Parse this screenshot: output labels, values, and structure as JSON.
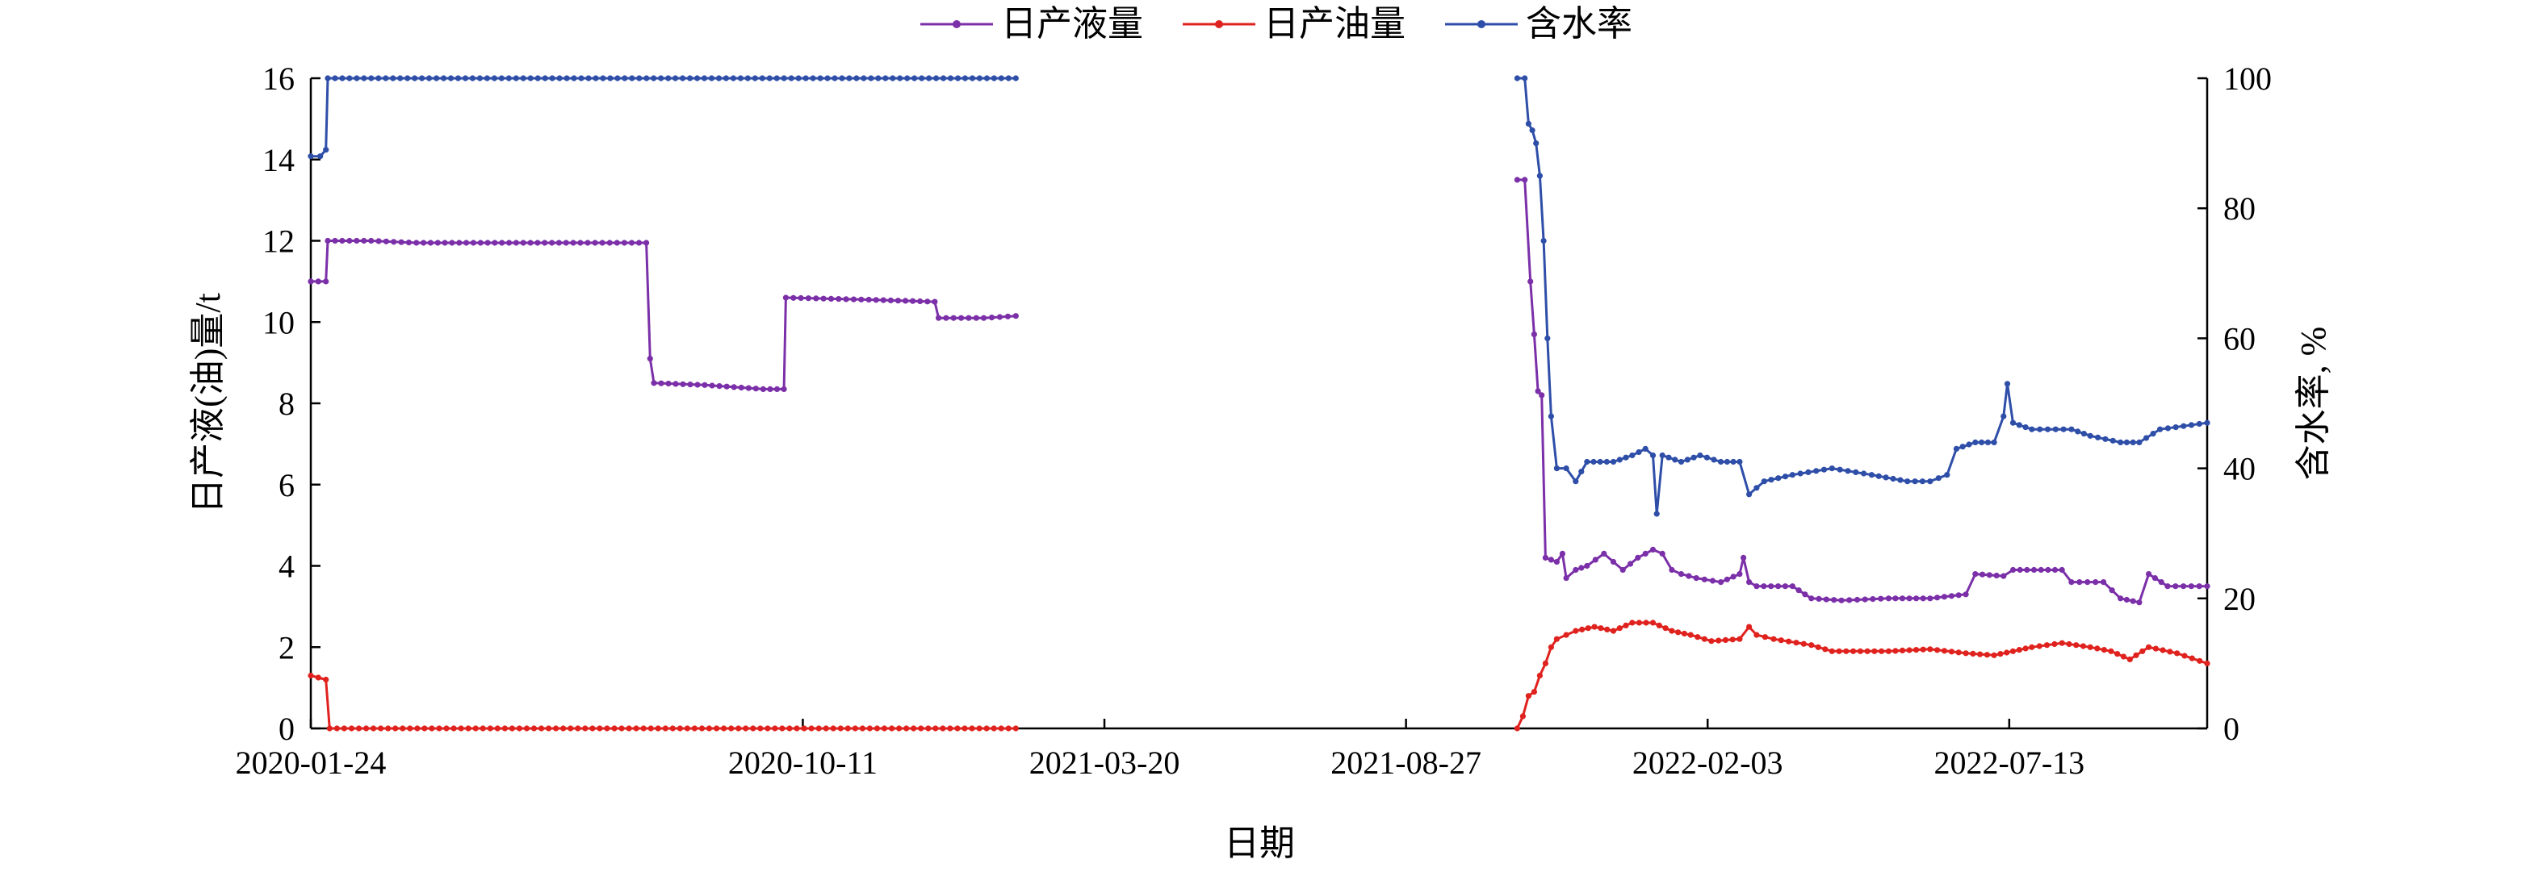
{
  "chart_data": {
    "type": "line",
    "xlabel": "日期",
    "ylabel_left": "日产液(油)量/t",
    "ylabel_right": "含水率, %",
    "x_ticks": [
      "2020-01-24",
      "2020-10-11",
      "2021-03-20",
      "2021-08-27",
      "2022-02-03",
      "2022-07-13"
    ],
    "xlim": [
      "2020-01-24",
      "2022-10-26"
    ],
    "ylim_left": [
      0,
      16
    ],
    "ylim_right": [
      0,
      100
    ],
    "yticks_left": [
      "0",
      "2",
      "4",
      "6",
      "8",
      "10",
      "12",
      "14",
      "16"
    ],
    "yticks_right": [
      "0",
      "20",
      "40",
      "60",
      "80",
      "100"
    ],
    "grid": false,
    "legend_position": "top-center",
    "series": [
      {
        "name": "日产液量",
        "axis": "left",
        "color": "#7B2FA8",
        "segments": [
          [
            [
              "2020-01-24",
              11.0
            ],
            [
              "2020-02-01",
              11.0
            ],
            [
              "2020-02-02",
              12.0
            ],
            [
              "2020-02-25",
              12.0
            ],
            [
              "2020-03-20",
              11.95
            ],
            [
              "2020-06-15",
              11.95
            ],
            [
              "2020-07-20",
              11.95
            ],
            [
              "2020-07-22",
              9.1
            ],
            [
              "2020-07-24",
              8.5
            ],
            [
              "2020-08-20",
              8.45
            ],
            [
              "2020-09-20",
              8.35
            ],
            [
              "2020-10-01",
              8.35
            ],
            [
              "2020-10-02",
              10.6
            ],
            [
              "2020-11-15",
              10.55
            ],
            [
              "2020-12-20",
              10.5
            ],
            [
              "2020-12-22",
              10.1
            ],
            [
              "2021-01-15",
              10.1
            ],
            [
              "2021-02-01",
              10.15
            ]
          ],
          [
            [
              "2021-10-25",
              13.5
            ],
            [
              "2021-10-29",
              13.5
            ],
            [
              "2021-11-01",
              11.0
            ],
            [
              "2021-11-03",
              9.7
            ],
            [
              "2021-11-05",
              8.3
            ],
            [
              "2021-11-07",
              8.2
            ],
            [
              "2021-11-09",
              4.2
            ],
            [
              "2021-11-15",
              4.1
            ],
            [
              "2021-11-18",
              4.3
            ],
            [
              "2021-11-20",
              3.7
            ],
            [
              "2021-11-25",
              3.9
            ],
            [
              "2021-12-01",
              4.0
            ],
            [
              "2021-12-10",
              4.3
            ],
            [
              "2021-12-15",
              4.1
            ],
            [
              "2021-12-20",
              3.9
            ],
            [
              "2021-12-28",
              4.2
            ],
            [
              "2022-01-05",
              4.4
            ],
            [
              "2022-01-10",
              4.3
            ],
            [
              "2022-01-15",
              3.9
            ],
            [
              "2022-01-20",
              3.8
            ],
            [
              "2022-01-28",
              3.7
            ],
            [
              "2022-02-10",
              3.6
            ],
            [
              "2022-02-20",
              3.8
            ],
            [
              "2022-02-22",
              4.2
            ],
            [
              "2022-02-25",
              3.6
            ],
            [
              "2022-03-01",
              3.5
            ],
            [
              "2022-03-20",
              3.5
            ],
            [
              "2022-03-30",
              3.2
            ],
            [
              "2022-04-15",
              3.15
            ],
            [
              "2022-05-10",
              3.2
            ],
            [
              "2022-06-01",
              3.2
            ],
            [
              "2022-06-20",
              3.3
            ],
            [
              "2022-06-25",
              3.8
            ],
            [
              "2022-07-10",
              3.75
            ],
            [
              "2022-07-15",
              3.9
            ],
            [
              "2022-08-10",
              3.9
            ],
            [
              "2022-08-15",
              3.6
            ],
            [
              "2022-09-01",
              3.6
            ],
            [
              "2022-09-10",
              3.2
            ],
            [
              "2022-09-20",
              3.1
            ],
            [
              "2022-09-25",
              3.8
            ],
            [
              "2022-10-05",
              3.5
            ],
            [
              "2022-10-26",
              3.5
            ]
          ]
        ]
      },
      {
        "name": "日产油量",
        "axis": "left",
        "color": "#E0221E",
        "segments": [
          [
            [
              "2020-01-24",
              1.3
            ],
            [
              "2020-01-28",
              1.25
            ],
            [
              "2020-02-01",
              1.2
            ],
            [
              "2020-02-03",
              0.0
            ],
            [
              "2021-02-01",
              0.0
            ]
          ],
          [
            [
              "2021-10-25",
              0.0
            ],
            [
              "2021-10-28",
              0.3
            ],
            [
              "2021-10-31",
              0.8
            ],
            [
              "2021-11-03",
              0.9
            ],
            [
              "2021-11-06",
              1.3
            ],
            [
              "2021-11-09",
              1.6
            ],
            [
              "2021-11-12",
              2.0
            ],
            [
              "2021-11-15",
              2.2
            ],
            [
              "2021-11-20",
              2.3
            ],
            [
              "2021-11-25",
              2.4
            ],
            [
              "2021-12-05",
              2.5
            ],
            [
              "2021-12-15",
              2.4
            ],
            [
              "2021-12-25",
              2.6
            ],
            [
              "2022-01-05",
              2.6
            ],
            [
              "2022-01-15",
              2.4
            ],
            [
              "2022-01-25",
              2.3
            ],
            [
              "2022-02-05",
              2.15
            ],
            [
              "2022-02-20",
              2.2
            ],
            [
              "2022-02-25",
              2.5
            ],
            [
              "2022-03-01",
              2.3
            ],
            [
              "2022-03-10",
              2.2
            ],
            [
              "2022-03-30",
              2.05
            ],
            [
              "2022-04-10",
              1.9
            ],
            [
              "2022-05-10",
              1.9
            ],
            [
              "2022-06-01",
              1.95
            ],
            [
              "2022-06-20",
              1.85
            ],
            [
              "2022-07-05",
              1.8
            ],
            [
              "2022-07-15",
              1.9
            ],
            [
              "2022-07-25",
              2.0
            ],
            [
              "2022-08-10",
              2.1
            ],
            [
              "2022-08-25",
              2.0
            ],
            [
              "2022-09-05",
              1.9
            ],
            [
              "2022-09-15",
              1.7
            ],
            [
              "2022-09-25",
              2.0
            ],
            [
              "2022-10-10",
              1.85
            ],
            [
              "2022-10-26",
              1.6
            ]
          ]
        ]
      },
      {
        "name": "含水率",
        "axis": "right",
        "color": "#2E4EA8",
        "segments": [
          [
            [
              "2020-01-24",
              88
            ],
            [
              "2020-01-29",
              88
            ],
            [
              "2020-02-01",
              89
            ],
            [
              "2020-02-02",
              100
            ],
            [
              "2021-02-01",
              100
            ]
          ],
          [
            [
              "2021-10-25",
              100
            ],
            [
              "2021-10-29",
              100
            ],
            [
              "2021-10-31",
              93
            ],
            [
              "2021-11-02",
              92
            ],
            [
              "2021-11-04",
              90
            ],
            [
              "2021-11-06",
              85
            ],
            [
              "2021-11-08",
              75
            ],
            [
              "2021-11-10",
              60
            ],
            [
              "2021-11-12",
              48
            ],
            [
              "2021-11-15",
              40
            ],
            [
              "2021-11-20",
              40
            ],
            [
              "2021-11-25",
              38
            ],
            [
              "2021-12-01",
              41
            ],
            [
              "2021-12-15",
              41
            ],
            [
              "2021-12-25",
              42
            ],
            [
              "2022-01-01",
              43
            ],
            [
              "2022-01-05",
              42
            ],
            [
              "2022-01-07",
              33
            ],
            [
              "2022-01-10",
              42
            ],
            [
              "2022-01-20",
              41
            ],
            [
              "2022-01-30",
              42
            ],
            [
              "2022-02-10",
              41
            ],
            [
              "2022-02-20",
              41
            ],
            [
              "2022-02-25",
              36
            ],
            [
              "2022-03-01",
              37
            ],
            [
              "2022-03-05",
              38
            ],
            [
              "2022-03-20",
              39
            ],
            [
              "2022-04-10",
              40
            ],
            [
              "2022-05-01",
              39
            ],
            [
              "2022-05-20",
              38
            ],
            [
              "2022-06-01",
              38
            ],
            [
              "2022-06-10",
              39
            ],
            [
              "2022-06-15",
              43
            ],
            [
              "2022-06-25",
              44
            ],
            [
              "2022-07-05",
              44
            ],
            [
              "2022-07-10",
              48
            ],
            [
              "2022-07-12",
              53
            ],
            [
              "2022-07-15",
              47
            ],
            [
              "2022-07-25",
              46
            ],
            [
              "2022-08-15",
              46
            ],
            [
              "2022-08-25",
              45
            ],
            [
              "2022-09-10",
              44
            ],
            [
              "2022-09-20",
              44
            ],
            [
              "2022-10-01",
              46
            ],
            [
              "2022-10-26",
              47
            ]
          ]
        ]
      }
    ]
  }
}
